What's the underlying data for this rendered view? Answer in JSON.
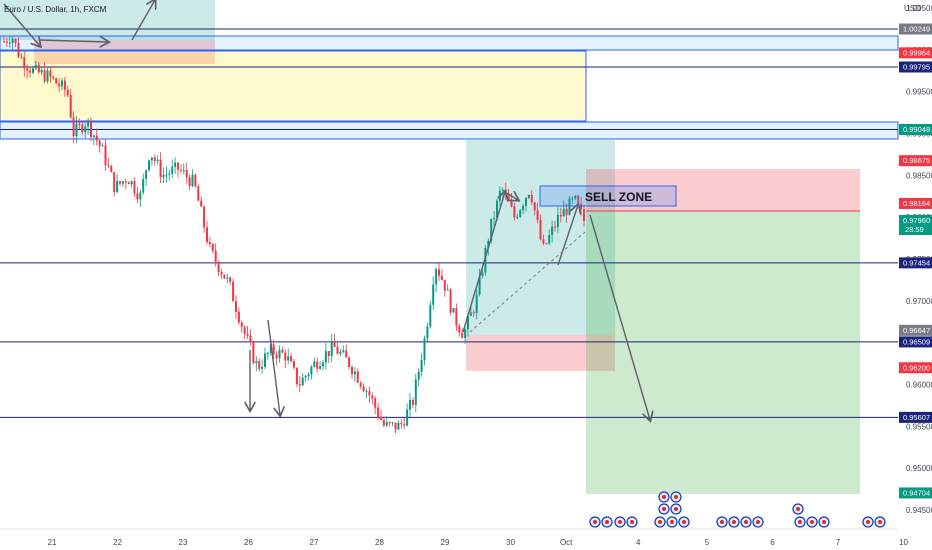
{
  "symbol_header": "Euro / U.S. Dollar, 1h, FXCM",
  "chart_data": {
    "type": "candlestick",
    "currency_label": "USD",
    "ylim": [
      0.943,
      1.005
    ],
    "y_ticks": [
      1.005,
      1.0,
      0.995,
      0.99,
      0.985,
      0.98,
      0.975,
      0.97,
      0.965,
      0.96,
      0.955,
      0.95,
      0.945
    ],
    "y_tick_labels": [
      "1.00500",
      "1.00000",
      "0.99500",
      "0.99000",
      "0.98500",
      "0.98000",
      "0.97500",
      "0.97000",
      "0.96500",
      "0.96000",
      "0.95500",
      "0.95000",
      "0.94500"
    ],
    "x_ticks": [
      "21",
      "22",
      "23",
      "26",
      "27",
      "28",
      "29",
      "30",
      "Oct",
      "4",
      "5",
      "6",
      "7",
      "10"
    ],
    "x_tick_positions": [
      1,
      2,
      3,
      4,
      5,
      6,
      7,
      8,
      8.85,
      9.95,
      11,
      12,
      13,
      14
    ],
    "price_tags": [
      {
        "value": 1.00249,
        "label": "1.00249",
        "color": "#787b86"
      },
      {
        "value": 0.99964,
        "label": "0.99964",
        "color": "#f23645"
      },
      {
        "value": 0.99795,
        "label": "0.99795",
        "color": "#1a237e"
      },
      {
        "value": 0.99048,
        "label": "0.99048",
        "color": "#089981"
      },
      {
        "value": 0.98675,
        "label": "0.98675",
        "color": "#f23645"
      },
      {
        "value": 0.98164,
        "label": "0.98164",
        "color": "#f23645"
      },
      {
        "value": 0.9796,
        "label": "0.97960",
        "sub": "28:59",
        "color": "#089981"
      },
      {
        "value": 0.97454,
        "label": "0.97454",
        "color": "#1a237e"
      },
      {
        "value": 0.96647,
        "label": "0.96647",
        "color": "#787b86"
      },
      {
        "value": 0.96509,
        "label": "0.96509",
        "color": "#1a237e"
      },
      {
        "value": 0.962,
        "label": "0.96200",
        "color": "#f23645"
      },
      {
        "value": 0.95607,
        "label": "0.95607",
        "color": "#1a237e"
      },
      {
        "value": 0.94704,
        "label": "0.94704",
        "color": "#089981"
      }
    ],
    "horizontal_lines": [
      1.00249,
      0.99795,
      0.99048,
      0.97454,
      0.96509,
      0.95607
    ],
    "annotation": "SELL ZONE",
    "price_path": [
      [
        0.0,
        1.001
      ],
      [
        0.12,
        1.0018
      ],
      [
        0.25,
        0.9992
      ],
      [
        0.45,
        0.9975
      ],
      [
        0.7,
        0.9968
      ],
      [
        1.0,
        0.995
      ],
      [
        1.1,
        0.99
      ],
      [
        1.3,
        0.9915
      ],
      [
        1.55,
        0.988
      ],
      [
        1.75,
        0.9835
      ],
      [
        1.95,
        0.9848
      ],
      [
        2.15,
        0.9825
      ],
      [
        2.3,
        0.988
      ],
      [
        2.5,
        0.985
      ],
      [
        2.75,
        0.9858
      ],
      [
        3.0,
        0.984
      ],
      [
        3.25,
        0.976
      ],
      [
        3.55,
        0.972
      ],
      [
        3.8,
        0.966
      ],
      [
        4.0,
        0.962
      ],
      [
        4.2,
        0.964
      ],
      [
        4.45,
        0.9635
      ],
      [
        4.65,
        0.96
      ],
      [
        4.9,
        0.9625
      ],
      [
        5.2,
        0.9645
      ],
      [
        5.45,
        0.9625
      ],
      [
        5.75,
        0.959
      ],
      [
        6.0,
        0.955
      ],
      [
        6.25,
        0.955
      ],
      [
        6.45,
        0.958
      ],
      [
        6.65,
        0.966
      ],
      [
        6.8,
        0.9745
      ],
      [
        6.95,
        0.972
      ],
      [
        7.1,
        0.968
      ],
      [
        7.25,
        0.966
      ],
      [
        7.45,
        0.97
      ],
      [
        7.65,
        0.978
      ],
      [
        7.85,
        0.9835
      ],
      [
        8.05,
        0.98
      ],
      [
        8.3,
        0.9835
      ],
      [
        8.5,
        0.976
      ],
      [
        8.75,
        0.98
      ],
      [
        9.0,
        0.982
      ],
      [
        9.15,
        0.9796
      ]
    ],
    "seed": 7
  }
}
